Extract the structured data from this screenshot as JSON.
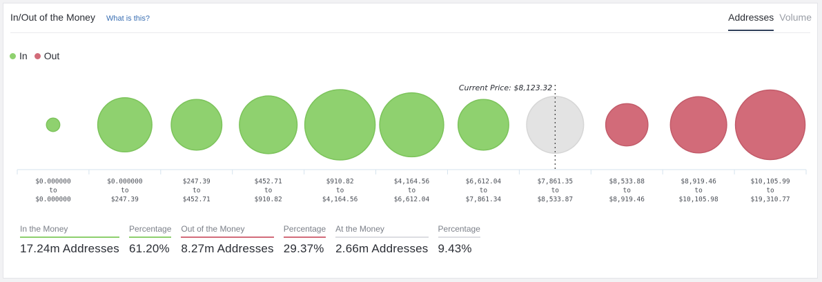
{
  "header": {
    "title": "In/Out of the Money",
    "help_link": "What is this?",
    "tabs": [
      {
        "label": "Addresses",
        "active": true
      },
      {
        "label": "Volume",
        "active": false
      }
    ]
  },
  "colors": {
    "in": "#8fd16f",
    "out": "#d26b79",
    "at": "#e3e3e3"
  },
  "legend": [
    {
      "label": "In",
      "color": "#8fd16f"
    },
    {
      "label": "Out",
      "color": "#d26b79"
    }
  ],
  "chart_data": {
    "type": "bubble",
    "current_price_label": "Current Price: $8,123.32",
    "categories": [
      {
        "from": "$0.000000",
        "to": "$0.000000",
        "status": "in",
        "relative_size": 0.19
      },
      {
        "from": "$0.000000",
        "to": "$247.39",
        "status": "in",
        "relative_size": 0.77
      },
      {
        "from": "$247.39",
        "to": "$452.71",
        "status": "in",
        "relative_size": 0.72
      },
      {
        "from": "$452.71",
        "to": "$910.82",
        "status": "in",
        "relative_size": 0.82
      },
      {
        "from": "$910.82",
        "to": "$4,164.56",
        "status": "in",
        "relative_size": 1.0
      },
      {
        "from": "$4,164.56",
        "to": "$6,612.04",
        "status": "in",
        "relative_size": 0.91
      },
      {
        "from": "$6,612.04",
        "to": "$7,861.34",
        "status": "in",
        "relative_size": 0.72
      },
      {
        "from": "$7,861.35",
        "to": "$8,533.87",
        "status": "at",
        "relative_size": 0.81
      },
      {
        "from": "$8,533.88",
        "to": "$8,919.46",
        "status": "out",
        "relative_size": 0.6
      },
      {
        "from": "$8,919.46",
        "to": "$10,105.98",
        "status": "out",
        "relative_size": 0.8
      },
      {
        "from": "$10,105.99",
        "to": "$19,310.77",
        "status": "out",
        "relative_size": 0.99
      }
    ]
  },
  "stats": [
    {
      "label": "In the Money",
      "value": "17.24m Addresses",
      "kind": "in"
    },
    {
      "label": "Percentage",
      "value": "61.20%",
      "kind": "in"
    },
    {
      "label": "Out of the Money",
      "value": "8.27m Addresses",
      "kind": "out"
    },
    {
      "label": "Percentage",
      "value": "29.37%",
      "kind": "out"
    },
    {
      "label": "At the Money",
      "value": "2.66m Addresses",
      "kind": "at"
    },
    {
      "label": "Percentage",
      "value": "9.43%",
      "kind": "at"
    }
  ]
}
